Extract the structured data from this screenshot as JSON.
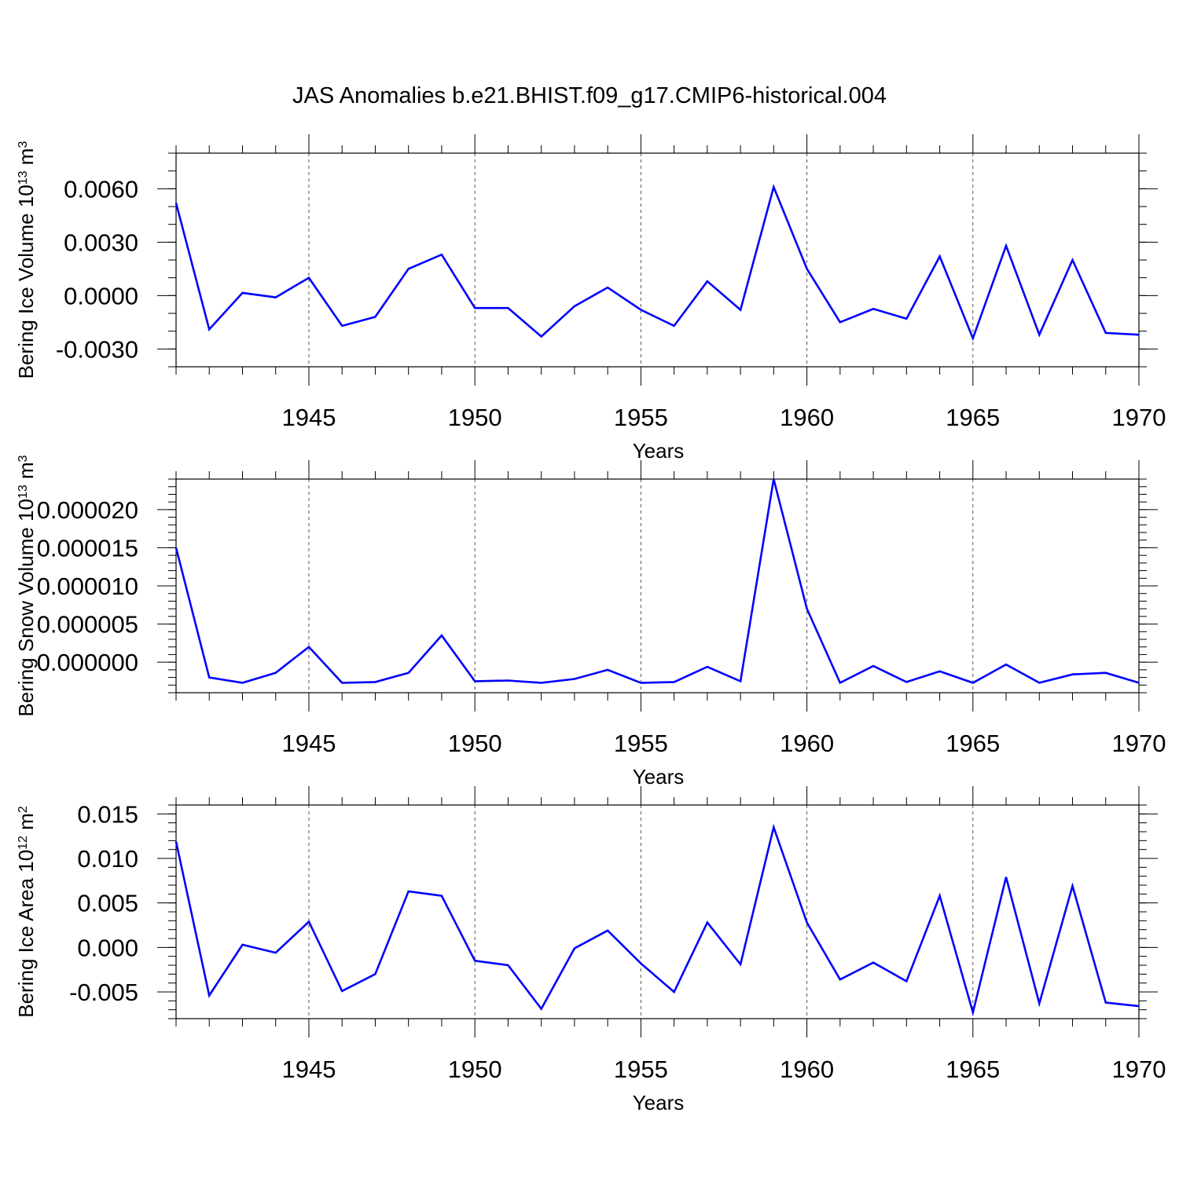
{
  "title": "JAS Anomalies b.e21.BHIST.f09_g17.CMIP6-historical.004",
  "colors": {
    "series": "#0000ff",
    "axis": "#000000",
    "grid": "#555555"
  },
  "chart_data": [
    {
      "type": "line",
      "ylabel": "Bering Ice Volume 10",
      "ylabel_exp": "13",
      "ylabel_unit": " m",
      "ylabel_unit_exp": "3",
      "xlabel": "Years",
      "xlim": [
        1941,
        1970
      ],
      "ylim": [
        -0.004,
        0.008
      ],
      "yticks": [
        -0.003,
        0.0,
        0.003,
        0.006
      ],
      "ytick_labels": [
        "-0.0030",
        "0.0000",
        "0.0030",
        "0.0060"
      ],
      "yminor_step": 0.001,
      "xticks": [
        1945,
        1950,
        1955,
        1960,
        1965,
        1970
      ],
      "grid": "x-dashed",
      "series": [
        {
          "name": "Bering Ice Volume",
          "x": [
            1941,
            1942,
            1943,
            1944,
            1945,
            1946,
            1947,
            1948,
            1949,
            1950,
            1951,
            1952,
            1953,
            1954,
            1955,
            1956,
            1957,
            1958,
            1959,
            1960,
            1961,
            1962,
            1963,
            1964,
            1965,
            1966,
            1967,
            1968,
            1969,
            1970
          ],
          "values": [
            0.0052,
            -0.0019,
            0.00015,
            -0.0001,
            0.001,
            -0.0017,
            -0.0012,
            0.0015,
            0.0023,
            -0.0007,
            -0.0007,
            -0.0023,
            -0.0006,
            0.00045,
            -0.0008,
            -0.0017,
            0.0008,
            -0.0008,
            0.0061,
            0.0015,
            -0.0015,
            -0.00075,
            -0.0013,
            0.0022,
            -0.0024,
            0.0028,
            -0.0022,
            0.002,
            -0.0021,
            -0.0022
          ]
        }
      ]
    },
    {
      "type": "line",
      "ylabel": "Bering Snow Volume 10",
      "ylabel_exp": "13",
      "ylabel_unit": " m",
      "ylabel_unit_exp": "3",
      "xlabel": "Years",
      "xlim": [
        1941,
        1970
      ],
      "ylim": [
        -4e-06,
        2.4e-05
      ],
      "yticks": [
        0.0,
        5e-06,
        1e-05,
        1.5e-05,
        2e-05
      ],
      "ytick_labels": [
        "0.000000",
        "0.000005",
        "0.000010",
        "0.000015",
        "0.000020"
      ],
      "yminor_step": 1e-06,
      "xticks": [
        1945,
        1950,
        1955,
        1960,
        1965,
        1970
      ],
      "grid": "x-dashed",
      "series": [
        {
          "name": "Bering Snow Volume",
          "x": [
            1941,
            1942,
            1943,
            1944,
            1945,
            1946,
            1947,
            1948,
            1949,
            1950,
            1951,
            1952,
            1953,
            1954,
            1955,
            1956,
            1957,
            1958,
            1959,
            1960,
            1961,
            1962,
            1963,
            1964,
            1965,
            1966,
            1967,
            1968,
            1969,
            1970
          ],
          "values": [
            1.5e-05,
            -2e-06,
            -2.7e-06,
            -1.4e-06,
            2e-06,
            -2.7e-06,
            -2.6e-06,
            -1.4e-06,
            3.5e-06,
            -2.5e-06,
            -2.4e-06,
            -2.7e-06,
            -2.2e-06,
            -1e-06,
            -2.7e-06,
            -2.6e-06,
            -6e-07,
            -2.5e-06,
            2.4e-05,
            7e-06,
            -2.7e-06,
            -5e-07,
            -2.6e-06,
            -1.2e-06,
            -2.7e-06,
            -3e-07,
            -2.7e-06,
            -1.6e-06,
            -1.4e-06,
            -2.7e-06
          ]
        }
      ]
    },
    {
      "type": "line",
      "ylabel": "Bering Ice Area 10",
      "ylabel_exp": "12",
      "ylabel_unit": " m",
      "ylabel_unit_exp": "2",
      "xlabel": "Years",
      "xlim": [
        1941,
        1970
      ],
      "ylim": [
        -0.008,
        0.016
      ],
      "yticks": [
        -0.005,
        0.0,
        0.005,
        0.01,
        0.015
      ],
      "ytick_labels": [
        "-0.005",
        "0.000",
        "0.005",
        "0.010",
        "0.015"
      ],
      "yminor_step": 0.001,
      "xticks": [
        1945,
        1950,
        1955,
        1960,
        1965,
        1970
      ],
      "grid": "x-dashed",
      "series": [
        {
          "name": "Bering Ice Area",
          "x": [
            1941,
            1942,
            1943,
            1944,
            1945,
            1946,
            1947,
            1948,
            1949,
            1950,
            1951,
            1952,
            1953,
            1954,
            1955,
            1956,
            1957,
            1958,
            1959,
            1960,
            1961,
            1962,
            1963,
            1964,
            1965,
            1966,
            1967,
            1968,
            1969,
            1970
          ],
          "values": [
            0.0119,
            -0.0054,
            0.0003,
            -0.0006,
            0.0029,
            -0.0049,
            -0.003,
            0.0063,
            0.0058,
            -0.0015,
            -0.002,
            -0.0069,
            -0.0001,
            0.0019,
            -0.0018,
            -0.005,
            0.0028,
            -0.0019,
            0.0135,
            0.0028,
            -0.0036,
            -0.0017,
            -0.0038,
            0.0058,
            -0.0073,
            0.0079,
            -0.0063,
            0.0069,
            -0.0062,
            -0.0066
          ]
        }
      ]
    }
  ]
}
